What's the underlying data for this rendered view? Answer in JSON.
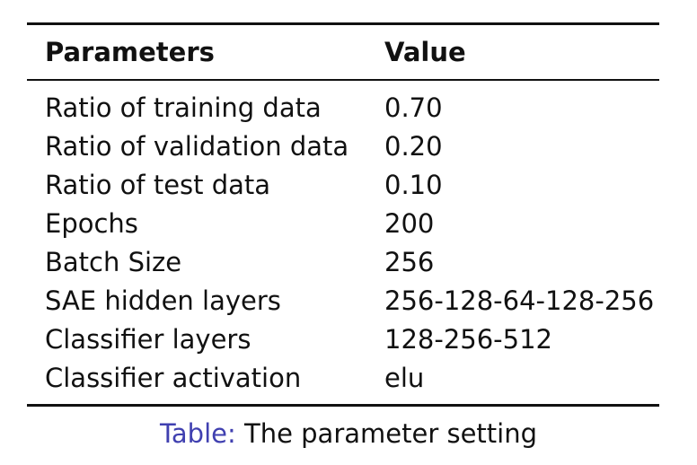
{
  "table": {
    "headers": {
      "parameter": "Parameters",
      "value": "Value"
    },
    "rows": [
      {
        "parameter": "Ratio of training data",
        "value": "0.70"
      },
      {
        "parameter": "Ratio of validation data",
        "value": "0.20"
      },
      {
        "parameter": "Ratio of test data",
        "value": "0.10"
      },
      {
        "parameter": "Epochs",
        "value": "200"
      },
      {
        "parameter": "Batch Size",
        "value": "256"
      },
      {
        "parameter": "SAE hidden layers",
        "value": "256-128-64-128-256"
      },
      {
        "parameter": "Classifier layers",
        "value": "128-256-512"
      },
      {
        "parameter": "Classifier activation",
        "value": "elu"
      }
    ]
  },
  "caption": {
    "label": "Table:",
    "text": "The parameter setting"
  },
  "colors": {
    "caption_label": "#4040b0",
    "text": "#111111"
  }
}
